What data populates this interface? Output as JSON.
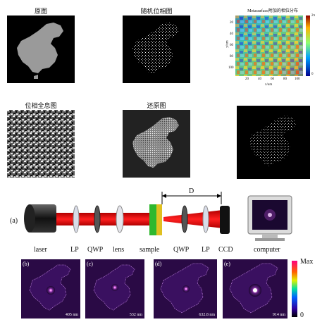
{
  "top_row": {
    "original_caption": "原图",
    "random_phase_caption": "随机位相图",
    "metasurface_title": "Metasurface附加的相位分布",
    "metasurface_xlabel": "x/um",
    "metasurface_ylabel": "y/um",
    "x_ticks": [
      "20",
      "40",
      "60",
      "80",
      "100"
    ],
    "y_ticks": [
      "20",
      "40",
      "60",
      "80",
      "100"
    ],
    "colorbar_ticks": [
      "2π",
      "0"
    ]
  },
  "middle_row": {
    "hologram_caption": "位相全息图",
    "restored_caption": "还原图"
  },
  "setup": {
    "panel_label": "(a)",
    "distance_label": "D",
    "components": [
      "laser",
      "LP",
      "QWP",
      "lens",
      "sample",
      "QWP",
      "LP",
      "CCD",
      "computer"
    ]
  },
  "results": {
    "panels": [
      {
        "label": "(b)",
        "wavelength": "405 nm"
      },
      {
        "label": "(c)",
        "wavelength": "532 nm"
      },
      {
        "label": "(d)",
        "wavelength": "632.8 nm"
      },
      {
        "label": "(e)",
        "wavelength": "914 nm"
      }
    ],
    "colorbar_max": "Max",
    "colorbar_min": "0"
  }
}
